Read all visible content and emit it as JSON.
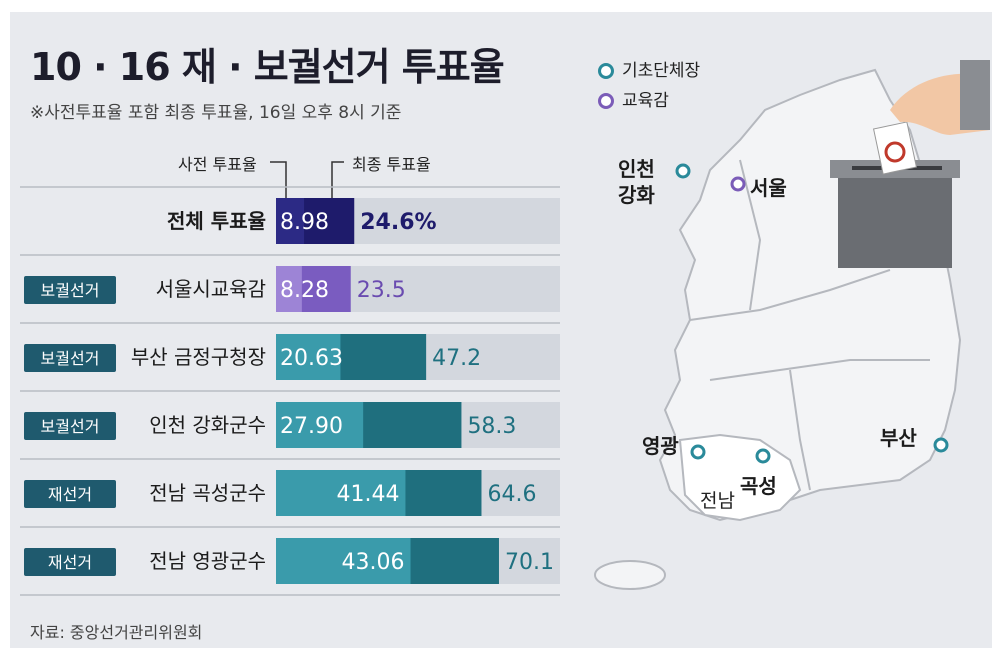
{
  "title": "10 · 16 재 · 보궐선거 투표율",
  "subtitle": "※사전투표율 포함 최종 투표율, 16일 오후 8시 기준",
  "legend": {
    "early": "사전 투표율",
    "final": "최종 투표율"
  },
  "source": "자료: 중앙선거관리위원회",
  "map_legend": {
    "mayor": "기초단체장",
    "education": "교육감"
  },
  "map_labels": {
    "incheon": "인천\n강화",
    "seoul": "서울",
    "yeonggwang": "영광",
    "gokseong": "곡성",
    "busan": "부산",
    "jeonnam": "전남"
  },
  "colors": {
    "overall_dark": "#1e1b6b",
    "overall_light": "#2c2a85",
    "edu_dark": "#7a5cc0",
    "edu_light": "#9d84d6",
    "teal_dark": "#1f6f7e",
    "teal_light": "#3a9bab",
    "track": "#d3d7de",
    "badge": "#1f5a6e"
  },
  "chart_data": {
    "type": "bar",
    "categories": [
      "전체 투표율",
      "서울시교육감",
      "부산 금정구청장",
      "인천 강화군수",
      "전남 곡성군수",
      "전남 영광군수"
    ],
    "badges": [
      "",
      "보궐선거",
      "보궐선거",
      "보궐선거",
      "재선거",
      "재선거"
    ],
    "series": [
      {
        "name": "사전 투표율",
        "values": [
          8.98,
          8.28,
          20.63,
          27.9,
          41.44,
          43.06
        ],
        "labels": [
          "8.98",
          "8.28",
          "20.63",
          "27.90",
          "41.44",
          "43.06"
        ]
      },
      {
        "name": "최종 투표율",
        "values": [
          24.6,
          23.5,
          47.2,
          58.3,
          64.6,
          70.1
        ],
        "labels": [
          "24.6%",
          "23.5",
          "47.2",
          "58.3",
          "64.6",
          "70.1"
        ]
      }
    ],
    "xlim": [
      0,
      100
    ]
  }
}
